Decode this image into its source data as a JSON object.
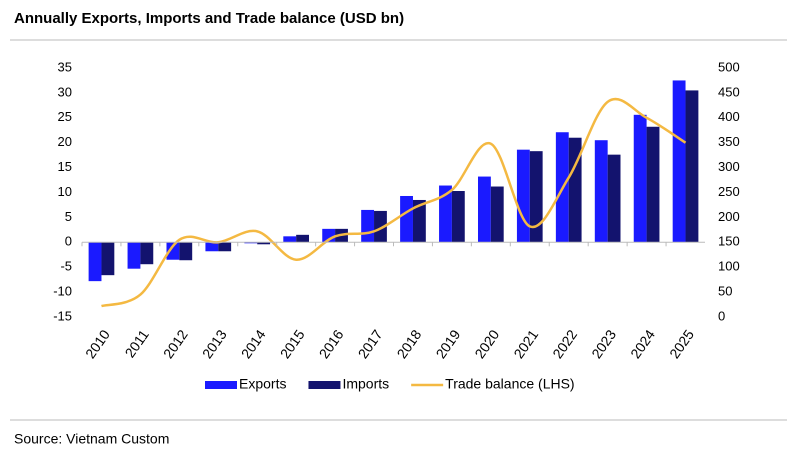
{
  "chart_data": {
    "type": "bar-line",
    "title": "Annually Exports, Imports and Trade balance (USD bn)",
    "source": "Source: Vietnam Custom",
    "categories": [
      "2010",
      "2011",
      "2012",
      "2013",
      "2014",
      "2015",
      "2016",
      "2017",
      "2018",
      "2019",
      "2020",
      "2021",
      "2022",
      "2023",
      "2024",
      "2025"
    ],
    "series": [
      {
        "name": "Exports",
        "color": "#1a1aff",
        "values": [
          -7.8,
          -5.3,
          -3.5,
          -1.8,
          -0.2,
          1.2,
          2.7,
          6.5,
          9.3,
          11.4,
          13.2,
          18.6,
          22.1,
          20.5,
          25.6,
          32.5
        ]
      },
      {
        "name": "Imports",
        "color": "#13136e",
        "values": [
          -6.6,
          -4.4,
          -3.6,
          -1.8,
          -0.4,
          1.5,
          2.7,
          6.3,
          8.5,
          10.3,
          11.2,
          18.3,
          21.0,
          17.6,
          23.2,
          30.5
        ]
      },
      {
        "name": "Trade balance (LHS)",
        "color": "#f4b942",
        "type": "line",
        "axis": "y2",
        "values": [
          22,
          45,
          155,
          150,
          172,
          115,
          162,
          172,
          218,
          255,
          348,
          182,
          280,
          432,
          400,
          350
        ]
      }
    ],
    "ylim": [
      -15,
      35
    ],
    "yticks": [
      -15,
      -10,
      -5,
      0,
      5,
      10,
      15,
      20,
      25,
      30,
      35
    ],
    "y2lim": [
      0,
      500
    ],
    "y2ticks": [
      0,
      50,
      100,
      150,
      200,
      250,
      300,
      350,
      400,
      450,
      500
    ]
  }
}
